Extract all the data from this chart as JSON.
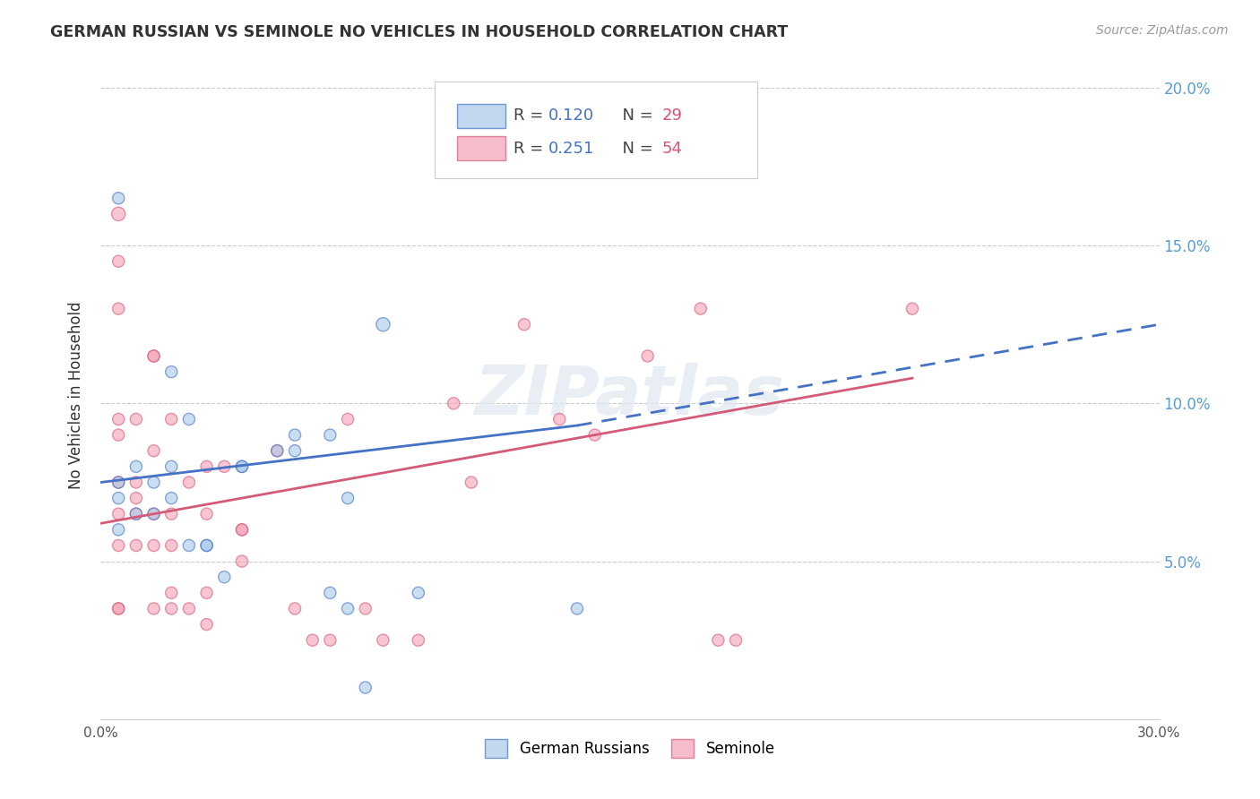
{
  "title": "GERMAN RUSSIAN VS SEMINOLE NO VEHICLES IN HOUSEHOLD CORRELATION CHART",
  "source": "Source: ZipAtlas.com",
  "ylabel": "No Vehicles in Household",
  "xlim": [
    0.0,
    0.3
  ],
  "ylim": [
    0.0,
    0.205
  ],
  "legend_r1": "0.120",
  "legend_n1": "29",
  "legend_r2": "0.251",
  "legend_n2": "54",
  "color_blue": "#a8c8e8",
  "color_pink": "#f4a0b5",
  "color_trend_blue": "#4472c4",
  "color_trend_pink": "#d45a78",
  "color_r_value": "#4472c4",
  "color_n_value": "#e05070",
  "watermark": "ZIPatlas",
  "legend_x1": "German Russians",
  "legend_x2": "Seminole",
  "german_russian_x": [
    0.01,
    0.02,
    0.03,
    0.04,
    0.05,
    0.055,
    0.065,
    0.07,
    0.08,
    0.09,
    0.135,
    0.005,
    0.005,
    0.005,
    0.005,
    0.01,
    0.015,
    0.015,
    0.02,
    0.02,
    0.025,
    0.025,
    0.03,
    0.035,
    0.04,
    0.055,
    0.065,
    0.07,
    0.075
  ],
  "german_russian_y": [
    0.08,
    0.11,
    0.055,
    0.08,
    0.085,
    0.09,
    0.09,
    0.07,
    0.125,
    0.04,
    0.035,
    0.165,
    0.075,
    0.07,
    0.06,
    0.065,
    0.075,
    0.065,
    0.08,
    0.07,
    0.095,
    0.055,
    0.055,
    0.045,
    0.08,
    0.085,
    0.04,
    0.035,
    0.01
  ],
  "german_russian_size": [
    60,
    60,
    60,
    60,
    60,
    60,
    60,
    60,
    80,
    60,
    60,
    60,
    60,
    60,
    60,
    60,
    60,
    60,
    60,
    60,
    60,
    60,
    60,
    60,
    60,
    60,
    60,
    60,
    60
  ],
  "gr_trend_x0": 0.0,
  "gr_trend_y0": 0.075,
  "gr_trend_x1": 0.135,
  "gr_trend_y1": 0.093,
  "gr_trend_dash_x1": 0.3,
  "gr_trend_dash_y1": 0.125,
  "sem_trend_x0": 0.0,
  "sem_trend_y0": 0.062,
  "sem_trend_x1": 0.23,
  "sem_trend_y1": 0.108,
  "seminole_x": [
    0.005,
    0.005,
    0.005,
    0.005,
    0.005,
    0.005,
    0.005,
    0.005,
    0.01,
    0.01,
    0.01,
    0.01,
    0.015,
    0.015,
    0.015,
    0.015,
    0.015,
    0.02,
    0.02,
    0.02,
    0.02,
    0.025,
    0.025,
    0.03,
    0.03,
    0.03,
    0.035,
    0.04,
    0.04,
    0.05,
    0.055,
    0.06,
    0.065,
    0.07,
    0.075,
    0.08,
    0.09,
    0.1,
    0.105,
    0.12,
    0.13,
    0.14,
    0.155,
    0.17,
    0.175,
    0.18,
    0.23,
    0.005,
    0.005,
    0.01,
    0.015,
    0.02,
    0.03,
    0.04
  ],
  "seminole_y": [
    0.13,
    0.09,
    0.075,
    0.065,
    0.055,
    0.035,
    0.145,
    0.16,
    0.07,
    0.075,
    0.065,
    0.055,
    0.085,
    0.065,
    0.055,
    0.035,
    0.115,
    0.095,
    0.065,
    0.055,
    0.035,
    0.075,
    0.035,
    0.08,
    0.065,
    0.03,
    0.08,
    0.06,
    0.05,
    0.085,
    0.035,
    0.025,
    0.025,
    0.095,
    0.035,
    0.025,
    0.025,
    0.1,
    0.075,
    0.125,
    0.095,
    0.09,
    0.115,
    0.13,
    0.025,
    0.025,
    0.13,
    0.095,
    0.035,
    0.095,
    0.115,
    0.04,
    0.04,
    0.06
  ],
  "seminole_size": [
    60,
    60,
    60,
    60,
    60,
    60,
    60,
    80,
    60,
    60,
    60,
    60,
    60,
    60,
    60,
    60,
    60,
    60,
    60,
    60,
    60,
    60,
    60,
    60,
    60,
    60,
    60,
    60,
    60,
    60,
    60,
    60,
    60,
    60,
    60,
    60,
    60,
    60,
    60,
    60,
    60,
    60,
    60,
    60,
    60,
    60,
    60,
    60,
    60,
    60,
    60,
    60,
    60,
    60
  ]
}
